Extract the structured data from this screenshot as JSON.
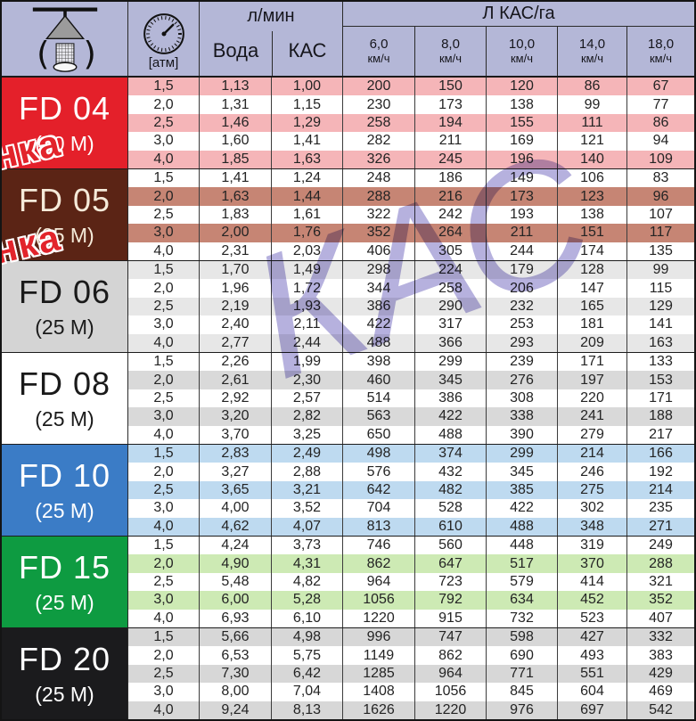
{
  "header": {
    "pressure_unit_label": "[атм]",
    "flow_section_title": "л/мин",
    "water_col_label": "Вода",
    "kas_col_label": "КАС",
    "rate_section_title": "Л КАС/га",
    "speed_cols": [
      {
        "speed": "6,0",
        "unit": "км/ч"
      },
      {
        "speed": "8,0",
        "unit": "км/ч"
      },
      {
        "speed": "10,0",
        "unit": "км/ч"
      },
      {
        "speed": "14,0",
        "unit": "км/ч"
      },
      {
        "speed": "18,0",
        "unit": "км/ч"
      }
    ],
    "header_bg": "#b4b7d7"
  },
  "groups": [
    {
      "name": "FD 04",
      "size": "(60 M)",
      "label_bg": "#e4202a",
      "label_text": "#ffffff",
      "tint": "#f5b5b8",
      "rows": [
        {
          "pressure": "1,5",
          "water": "1,13",
          "kas": "1,00",
          "rates": [
            "200",
            "150",
            "120",
            "86",
            "67"
          ]
        },
        {
          "pressure": "2,0",
          "water": "1,31",
          "kas": "1,15",
          "rates": [
            "230",
            "173",
            "138",
            "99",
            "77"
          ]
        },
        {
          "pressure": "2,5",
          "water": "1,46",
          "kas": "1,29",
          "rates": [
            "258",
            "194",
            "155",
            "111",
            "86"
          ]
        },
        {
          "pressure": "3,0",
          "water": "1,60",
          "kas": "1,41",
          "rates": [
            "282",
            "211",
            "169",
            "121",
            "94"
          ]
        },
        {
          "pressure": "4,0",
          "water": "1,85",
          "kas": "1,63",
          "rates": [
            "326",
            "245",
            "196",
            "140",
            "109"
          ]
        }
      ]
    },
    {
      "name": "FD 05",
      "size": "(25 M)",
      "label_bg": "#5b2415",
      "label_text": "#f5ead9",
      "tint": "#c68574",
      "rows": [
        {
          "pressure": "1,5",
          "water": "1,41",
          "kas": "1,24",
          "rates": [
            "248",
            "186",
            "149",
            "106",
            "83"
          ]
        },
        {
          "pressure": "2,0",
          "water": "1,63",
          "kas": "1,44",
          "rates": [
            "288",
            "216",
            "173",
            "123",
            "96"
          ]
        },
        {
          "pressure": "2,5",
          "water": "1,83",
          "kas": "1,61",
          "rates": [
            "322",
            "242",
            "193",
            "138",
            "107"
          ]
        },
        {
          "pressure": "3,0",
          "water": "2,00",
          "kas": "1,76",
          "rates": [
            "352",
            "264",
            "211",
            "151",
            "117"
          ]
        },
        {
          "pressure": "4,0",
          "water": "2,31",
          "kas": "2,03",
          "rates": [
            "406",
            "305",
            "244",
            "174",
            "135"
          ]
        }
      ]
    },
    {
      "name": "FD 06",
      "size": "(25 M)",
      "label_bg": "#d4d4d4",
      "label_text": "#1a1a1a",
      "tint": "#e7e7e7",
      "rows": [
        {
          "pressure": "1,5",
          "water": "1,70",
          "kas": "1,49",
          "rates": [
            "298",
            "224",
            "179",
            "128",
            "99"
          ]
        },
        {
          "pressure": "2,0",
          "water": "1,96",
          "kas": "1,72",
          "rates": [
            "344",
            "258",
            "206",
            "147",
            "115"
          ]
        },
        {
          "pressure": "2,5",
          "water": "2,19",
          "kas": "1,93",
          "rates": [
            "386",
            "290",
            "232",
            "165",
            "129"
          ]
        },
        {
          "pressure": "3,0",
          "water": "2,40",
          "kas": "2,11",
          "rates": [
            "422",
            "317",
            "253",
            "181",
            "141"
          ]
        },
        {
          "pressure": "4,0",
          "water": "2,77",
          "kas": "2,44",
          "rates": [
            "488",
            "366",
            "293",
            "209",
            "163"
          ]
        }
      ]
    },
    {
      "name": "FD 08",
      "size": "(25 M)",
      "label_bg": "#ffffff",
      "label_text": "#1a1a1a",
      "tint": "#d9d9d9",
      "rows": [
        {
          "pressure": "1,5",
          "water": "2,26",
          "kas": "1,99",
          "rates": [
            "398",
            "299",
            "239",
            "171",
            "133"
          ]
        },
        {
          "pressure": "2,0",
          "water": "2,61",
          "kas": "2,30",
          "rates": [
            "460",
            "345",
            "276",
            "197",
            "153"
          ]
        },
        {
          "pressure": "2,5",
          "water": "2,92",
          "kas": "2,57",
          "rates": [
            "514",
            "386",
            "308",
            "220",
            "171"
          ]
        },
        {
          "pressure": "3,0",
          "water": "3,20",
          "kas": "2,82",
          "rates": [
            "563",
            "422",
            "338",
            "241",
            "188"
          ]
        },
        {
          "pressure": "4,0",
          "water": "3,70",
          "kas": "3,25",
          "rates": [
            "650",
            "488",
            "390",
            "279",
            "217"
          ]
        }
      ]
    },
    {
      "name": "FD 10",
      "size": "(25 M)",
      "label_bg": "#3b7cc6",
      "label_text": "#ffffff",
      "tint": "#bedaf0",
      "rows": [
        {
          "pressure": "1,5",
          "water": "2,83",
          "kas": "2,49",
          "rates": [
            "498",
            "374",
            "299",
            "214",
            "166"
          ]
        },
        {
          "pressure": "2,0",
          "water": "3,27",
          "kas": "2,88",
          "rates": [
            "576",
            "432",
            "345",
            "246",
            "192"
          ]
        },
        {
          "pressure": "2,5",
          "water": "3,65",
          "kas": "3,21",
          "rates": [
            "642",
            "482",
            "385",
            "275",
            "214"
          ]
        },
        {
          "pressure": "3,0",
          "water": "4,00",
          "kas": "3,52",
          "rates": [
            "704",
            "528",
            "422",
            "302",
            "235"
          ]
        },
        {
          "pressure": "4,0",
          "water": "4,62",
          "kas": "4,07",
          "rates": [
            "813",
            "610",
            "488",
            "348",
            "271"
          ]
        }
      ]
    },
    {
      "name": "FD 15",
      "size": "(25 M)",
      "label_bg": "#0e9b41",
      "label_text": "#ffffff",
      "tint": "#cdeab4",
      "rows": [
        {
          "pressure": "1,5",
          "water": "4,24",
          "kas": "3,73",
          "rates": [
            "746",
            "560",
            "448",
            "319",
            "249"
          ]
        },
        {
          "pressure": "2,0",
          "water": "4,90",
          "kas": "4,31",
          "rates": [
            "862",
            "647",
            "517",
            "370",
            "288"
          ]
        },
        {
          "pressure": "2,5",
          "water": "5,48",
          "kas": "4,82",
          "rates": [
            "964",
            "723",
            "579",
            "414",
            "321"
          ]
        },
        {
          "pressure": "3,0",
          "water": "6,00",
          "kas": "5,28",
          "rates": [
            "1056",
            "792",
            "634",
            "452",
            "352"
          ]
        },
        {
          "pressure": "4,0",
          "water": "6,93",
          "kas": "6,10",
          "rates": [
            "1220",
            "915",
            "732",
            "523",
            "407"
          ]
        }
      ]
    },
    {
      "name": "FD 20",
      "size": "(25 M)",
      "label_bg": "#1b1b1d",
      "label_text": "#ffffff",
      "tint": "#d7d7d7",
      "rows": [
        {
          "pressure": "1,5",
          "water": "5,66",
          "kas": "4,98",
          "rates": [
            "996",
            "747",
            "598",
            "427",
            "332"
          ]
        },
        {
          "pressure": "2,0",
          "water": "6,53",
          "kas": "5,75",
          "rates": [
            "1149",
            "862",
            "690",
            "493",
            "383"
          ]
        },
        {
          "pressure": "2,5",
          "water": "7,30",
          "kas": "6,42",
          "rates": [
            "1285",
            "964",
            "771",
            "551",
            "429"
          ]
        },
        {
          "pressure": "3,0",
          "water": "8,00",
          "kas": "7,04",
          "rates": [
            "1408",
            "1056",
            "845",
            "604",
            "469"
          ]
        },
        {
          "pressure": "4,0",
          "water": "9,24",
          "kas": "8,13",
          "rates": [
            "1626",
            "1220",
            "976",
            "697",
            "542"
          ]
        }
      ]
    }
  ],
  "watermarks": {
    "kas_text": "КАС",
    "kas_color": "#b6b1de",
    "fragment_color": "#e2242b",
    "left_fragments": [
      {
        "text": "нка"
      },
      {
        "text": "нка"
      }
    ]
  }
}
